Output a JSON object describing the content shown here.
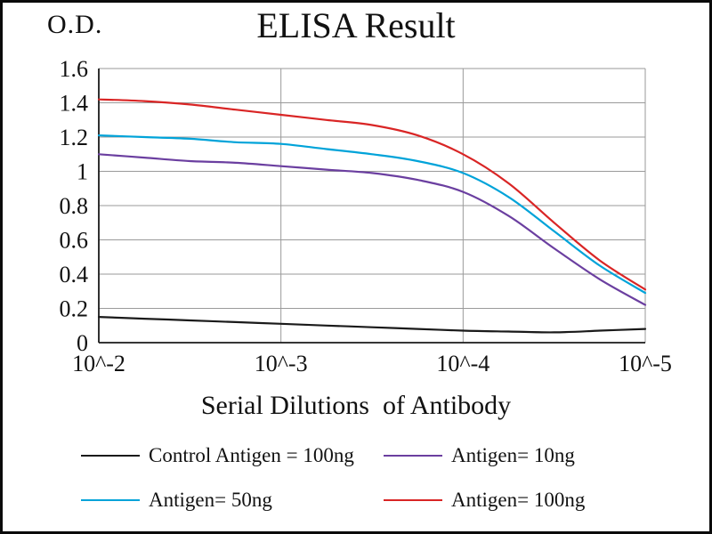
{
  "chart_data": {
    "type": "line",
    "title": "ELISA Result",
    "od_label": "O.D.",
    "xlabel": "Serial Dilutions  of Antibody",
    "ylabel": "O.D.",
    "categories": [
      "10^-2",
      "10^-3",
      "10^-4",
      "10^-5"
    ],
    "ytick_labels": [
      "0",
      "0.2",
      "0.4",
      "0.6",
      "0.8",
      "1",
      "1.2",
      "1.4",
      "1.6"
    ],
    "yticks": [
      0,
      0.2,
      0.4,
      0.6,
      0.8,
      1.0,
      1.2,
      1.4,
      1.6
    ],
    "ylim": [
      0,
      1.6
    ],
    "grid": true,
    "legend_position": "bottom",
    "x": [
      0,
      0.25,
      0.5,
      0.75,
      1,
      1.25,
      1.5,
      1.75,
      2,
      2.25,
      2.5,
      2.75,
      3
    ],
    "series": [
      {
        "name": "Control Antigen = 100ng",
        "color": "#1a1a1a",
        "values": [
          0.15,
          0.14,
          0.13,
          0.12,
          0.11,
          0.1,
          0.09,
          0.08,
          0.07,
          0.065,
          0.06,
          0.07,
          0.08
        ]
      },
      {
        "name": "Antigen= 10ng",
        "color": "#6b3fa0",
        "values": [
          1.1,
          1.08,
          1.06,
          1.05,
          1.03,
          1.01,
          0.99,
          0.95,
          0.88,
          0.74,
          0.55,
          0.37,
          0.22
        ]
      },
      {
        "name": "Antigen= 50ng",
        "color": "#00a3d9",
        "values": [
          1.21,
          1.2,
          1.19,
          1.17,
          1.16,
          1.13,
          1.1,
          1.06,
          0.99,
          0.85,
          0.65,
          0.45,
          0.29
        ]
      },
      {
        "name": "Antigen= 100ng",
        "color": "#d92525",
        "values": [
          1.42,
          1.41,
          1.39,
          1.36,
          1.33,
          1.3,
          1.27,
          1.21,
          1.1,
          0.93,
          0.7,
          0.48,
          0.31
        ]
      }
    ],
    "style": {
      "grid_color": "#9a9a9a",
      "axis_color": "#1a1a1a",
      "background": "#ffffff"
    }
  }
}
